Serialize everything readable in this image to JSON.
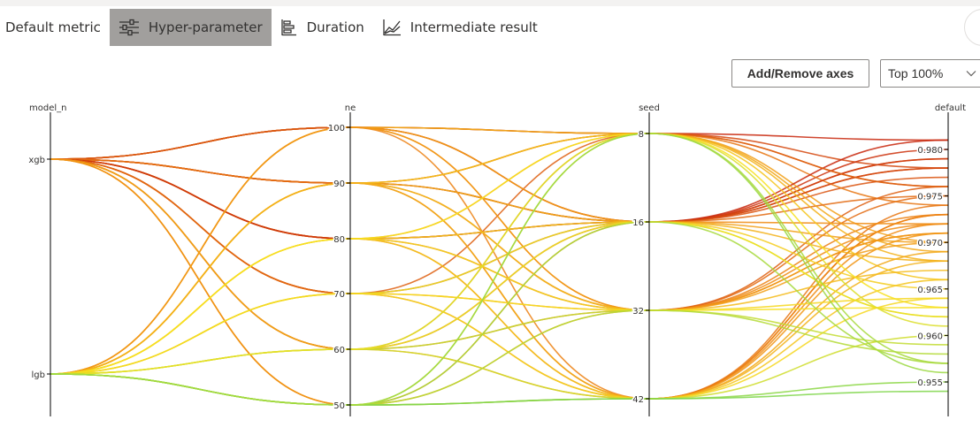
{
  "tabs": [
    {
      "label": "Default metric",
      "icon": "none",
      "active": false
    },
    {
      "label": "Hyper-parameter",
      "icon": "sliders-icon",
      "active": true
    },
    {
      "label": "Duration",
      "icon": "bar-list-icon",
      "active": false
    },
    {
      "label": "Intermediate result",
      "icon": "line-chart-icon",
      "active": false
    }
  ],
  "toolbar": {
    "axes_button": "Add/Remove axes",
    "top_select": "Top 100%"
  },
  "colors": {
    "active_tab_bg": "#a19f9d",
    "low": "#7fd64a",
    "mid": "#f7e01f",
    "high": "#c8260b"
  },
  "chart_data": {
    "type": "parallel_coordinates",
    "axes": [
      {
        "name": "model_n",
        "type": "categorical",
        "values": [
          "xgb",
          "lgb"
        ]
      },
      {
        "name": "ne",
        "type": "categorical",
        "values": [
          100,
          90,
          80,
          70,
          60,
          50
        ]
      },
      {
        "name": "seed",
        "type": "categorical",
        "values": [
          8,
          16,
          32,
          42
        ]
      },
      {
        "name": "default",
        "type": "numeric",
        "range": [
          0.952,
          0.983
        ],
        "ticks": [
          "0.980",
          "0.975",
          "0.970",
          "0.965",
          "0.960",
          "0.955"
        ]
      }
    ],
    "color_by": "default",
    "trials": [
      [
        "xgb",
        100,
        8,
        0.981
      ],
      [
        "xgb",
        100,
        16,
        0.979
      ],
      [
        "xgb",
        100,
        16,
        0.977
      ],
      [
        "xgb",
        100,
        42,
        0.973
      ],
      [
        "xgb",
        100,
        32,
        0.971
      ],
      [
        "xgb",
        100,
        8,
        0.978
      ],
      [
        "xgb",
        90,
        8,
        0.976
      ],
      [
        "xgb",
        90,
        16,
        0.978
      ],
      [
        "xgb",
        90,
        32,
        0.975
      ],
      [
        "xgb",
        90,
        42,
        0.972
      ],
      [
        "xgb",
        90,
        16,
        0.98
      ],
      [
        "xgb",
        90,
        8,
        0.974
      ],
      [
        "xgb",
        80,
        16,
        0.979
      ],
      [
        "xgb",
        80,
        32,
        0.976
      ],
      [
        "xgb",
        80,
        42,
        0.973
      ],
      [
        "xgb",
        80,
        8,
        0.97
      ],
      [
        "xgb",
        80,
        16,
        0.981
      ],
      [
        "xgb",
        70,
        16,
        0.978
      ],
      [
        "xgb",
        70,
        42,
        0.974
      ],
      [
        "xgb",
        70,
        32,
        0.972
      ],
      [
        "xgb",
        70,
        8,
        0.976
      ],
      [
        "xgb",
        60,
        42,
        0.971
      ],
      [
        "xgb",
        60,
        32,
        0.973
      ],
      [
        "xgb",
        60,
        16,
        0.975
      ],
      [
        "xgb",
        60,
        8,
        0.969
      ],
      [
        "xgb",
        50,
        32,
        0.97
      ],
      [
        "xgb",
        50,
        42,
        0.968
      ],
      [
        "xgb",
        50,
        16,
        0.972
      ],
      [
        "lgb",
        100,
        8,
        0.968
      ],
      [
        "lgb",
        100,
        16,
        0.97
      ],
      [
        "lgb",
        100,
        32,
        0.971
      ],
      [
        "lgb",
        90,
        8,
        0.966
      ],
      [
        "lgb",
        90,
        32,
        0.967
      ],
      [
        "lgb",
        90,
        42,
        0.969
      ],
      [
        "lgb",
        90,
        16,
        0.968
      ],
      [
        "lgb",
        80,
        16,
        0.965
      ],
      [
        "lgb",
        80,
        42,
        0.966
      ],
      [
        "lgb",
        80,
        32,
        0.964
      ],
      [
        "lgb",
        80,
        8,
        0.963
      ],
      [
        "lgb",
        70,
        32,
        0.963
      ],
      [
        "lgb",
        70,
        16,
        0.962
      ],
      [
        "lgb",
        70,
        42,
        0.964
      ],
      [
        "lgb",
        60,
        42,
        0.96
      ],
      [
        "lgb",
        60,
        8,
        0.961
      ],
      [
        "lgb",
        60,
        32,
        0.959
      ],
      [
        "lgb",
        60,
        16,
        0.962
      ],
      [
        "lgb",
        50,
        8,
        0.956
      ],
      [
        "lgb",
        50,
        16,
        0.957
      ],
      [
        "lgb",
        50,
        42,
        0.955
      ],
      [
        "lgb",
        50,
        32,
        0.958
      ],
      [
        "lgb",
        50,
        42,
        0.954
      ],
      [
        "lgb",
        50,
        8,
        0.957
      ]
    ]
  }
}
